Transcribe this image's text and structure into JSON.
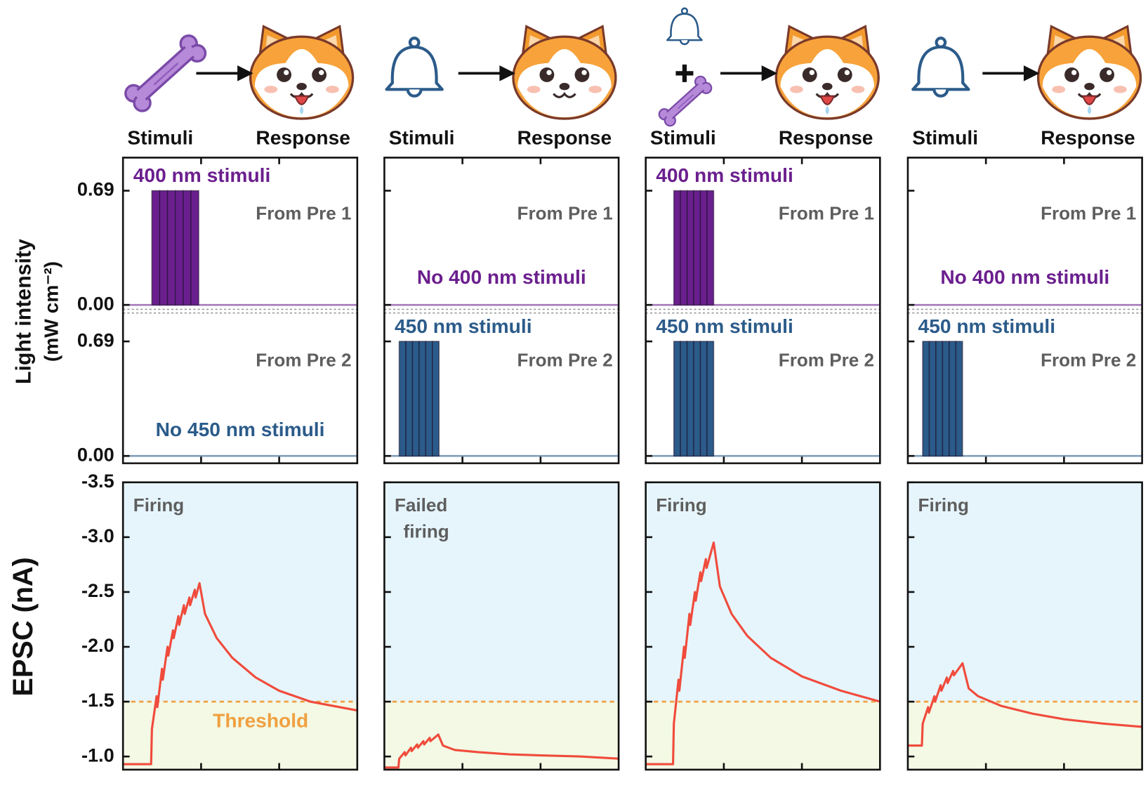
{
  "columns": [
    {
      "stimuli": "Stimuli",
      "response": "Response"
    },
    {
      "stimuli": "Stimuli",
      "response": "Response"
    },
    {
      "stimuli": "Stimuli",
      "response": "Response"
    },
    {
      "stimuli": "Stimuli",
      "response": "Response"
    }
  ],
  "ylabels": {
    "light": "Light intensity",
    "light_unit": "(mW cm⁻²)",
    "epsc": "EPSC (nA)"
  },
  "chart_data": [
    {
      "type": "pulse",
      "label": "400 nm stimuli",
      "source": "From Pre 1",
      "color": "#6b1f8e",
      "x": [
        3.7,
        4.7,
        5.7,
        6.7,
        7.7,
        8.7
      ],
      "pulse_width": 1.0,
      "values": [
        0.69,
        0.69,
        0.69,
        0.69,
        0.69,
        0.69
      ],
      "xlim": [
        0,
        30
      ],
      "xticks": [
        10,
        20
      ],
      "ylim": [
        -0.04,
        0.89
      ],
      "yticks": [
        {
          "value": 0,
          "label": "0.00"
        },
        0.69
      ]
    },
    {
      "type": "pulse",
      "label": "No 450 nm stimuli",
      "source": "From Pre 2",
      "color": "#2b5b8a",
      "x": [],
      "values": [],
      "xlim": [
        0,
        30
      ],
      "xticks": [
        10,
        20
      ],
      "ylim": [
        -0.044,
        0.87
      ],
      "yticks": [
        {
          "value": 0,
          "label": "0.00"
        },
        0.69
      ]
    },
    {
      "type": "line",
      "status": [
        "Firing"
      ],
      "threshold": -1.5,
      "threshold_label": "Threshold",
      "color": "#f04b3c",
      "x": [
        0,
        3.6,
        3.7,
        4.3,
        4.4,
        5.0,
        5.1,
        5.7,
        5.8,
        6.4,
        6.5,
        7.1,
        7.2,
        7.8,
        7.9,
        8.5,
        8.6,
        9.2,
        9.3,
        9.8,
        10.5,
        12,
        14,
        17,
        20,
        24,
        27,
        30
      ],
      "values": [
        -0.93,
        -0.93,
        -1.25,
        -1.55,
        -1.45,
        -1.8,
        -1.7,
        -2.0,
        -1.92,
        -2.15,
        -2.08,
        -2.28,
        -2.2,
        -2.38,
        -2.3,
        -2.45,
        -2.38,
        -2.52,
        -2.45,
        -2.58,
        -2.3,
        -2.08,
        -1.9,
        -1.72,
        -1.6,
        -1.5,
        -1.46,
        -1.42
      ],
      "xlim": [
        0,
        30
      ],
      "xticks": [
        10,
        20
      ],
      "ylim": [
        -0.88,
        -3.5
      ],
      "yticks": [
        -3.5,
        {
          "value": -3,
          "label": "-3.0"
        },
        -2.5,
        {
          "value": -2,
          "label": "-2.0"
        },
        -1.5,
        {
          "value": -1,
          "label": "-1.0"
        }
      ]
    },
    {
      "type": "pulse",
      "label": "No 400 nm stimuli",
      "source": "From Pre 1",
      "color": "#6b1f8e",
      "x": [],
      "values": [],
      "xlim": [
        0,
        30
      ],
      "xticks": [
        10,
        20
      ],
      "ylim": [
        -0.04,
        0.89
      ],
      "yticks": [
        0,
        0.69
      ],
      "tick_labels": false
    },
    {
      "type": "pulse",
      "label": "450 nm stimuli",
      "source": "From Pre 2",
      "color": "#2b5b8a",
      "x": [
        1.9,
        2.75,
        3.6,
        4.45,
        5.3,
        6.15
      ],
      "pulse_width": 0.85,
      "values": [
        0.69,
        0.69,
        0.69,
        0.69,
        0.69,
        0.69
      ],
      "xlim": [
        0,
        30
      ],
      "xticks": [
        10,
        20
      ],
      "ylim": [
        -0.044,
        0.87
      ],
      "yticks": [
        0,
        0.69
      ],
      "tick_labels": false
    },
    {
      "type": "line",
      "status": [
        "Failed",
        "firing"
      ],
      "threshold": -1.5,
      "color": "#f04b3c",
      "x": [
        0,
        1.8,
        1.9,
        2.6,
        2.7,
        3.4,
        3.5,
        4.2,
        4.3,
        5.0,
        5.1,
        5.8,
        5.9,
        6.9,
        7.5,
        9,
        12,
        16,
        20,
        25,
        30
      ],
      "values": [
        -0.9,
        -0.9,
        -0.98,
        -1.04,
        -1.01,
        -1.08,
        -1.05,
        -1.11,
        -1.08,
        -1.14,
        -1.11,
        -1.17,
        -1.14,
        -1.2,
        -1.1,
        -1.06,
        -1.04,
        -1.02,
        -1.01,
        -1.0,
        -0.98
      ],
      "xlim": [
        0,
        30
      ],
      "xticks": [
        10,
        20
      ],
      "ylim": [
        -0.88,
        -3.5
      ],
      "yticks": [
        -3.5,
        -3,
        -2.5,
        -2,
        -1.5,
        -1
      ],
      "tick_labels": false
    },
    {
      "type": "pulse",
      "label": "400 nm stimuli",
      "source": "From Pre 1",
      "color": "#6b1f8e",
      "x": [
        3.6,
        4.45,
        5.3,
        6.15,
        7.0,
        7.85
      ],
      "pulse_width": 0.85,
      "values": [
        0.69,
        0.69,
        0.69,
        0.69,
        0.69,
        0.69
      ],
      "xlim": [
        0,
        30
      ],
      "xticks": [
        10,
        20
      ],
      "ylim": [
        -0.04,
        0.89
      ],
      "yticks": [
        0,
        0.69
      ],
      "tick_labels": false
    },
    {
      "type": "pulse",
      "label": "450 nm stimuli",
      "source": "From Pre 2",
      "color": "#2b5b8a",
      "x": [
        3.6,
        4.45,
        5.3,
        6.15,
        7.0,
        7.85
      ],
      "pulse_width": 0.85,
      "values": [
        0.69,
        0.69,
        0.69,
        0.69,
        0.69,
        0.69
      ],
      "xlim": [
        0,
        30
      ],
      "xticks": [
        10,
        20
      ],
      "ylim": [
        -0.044,
        0.87
      ],
      "yticks": [
        0,
        0.69
      ],
      "tick_labels": false
    },
    {
      "type": "line",
      "status": [
        "Firing"
      ],
      "threshold": -1.5,
      "color": "#f04b3c",
      "x": [
        0,
        3.5,
        3.6,
        4.2,
        4.3,
        4.9,
        5.0,
        5.6,
        5.7,
        6.3,
        6.4,
        7.0,
        7.1,
        7.7,
        7.8,
        8.7,
        9.5,
        11,
        13,
        16,
        20,
        25,
        30
      ],
      "values": [
        -0.93,
        -0.93,
        -1.3,
        -1.7,
        -1.6,
        -2.0,
        -1.9,
        -2.3,
        -2.2,
        -2.5,
        -2.42,
        -2.68,
        -2.6,
        -2.8,
        -2.72,
        -2.95,
        -2.55,
        -2.3,
        -2.1,
        -1.9,
        -1.73,
        -1.6,
        -1.5
      ],
      "xlim": [
        0,
        30
      ],
      "xticks": [
        10,
        20
      ],
      "ylim": [
        -0.88,
        -3.5
      ],
      "yticks": [
        -3.5,
        -3,
        -2.5,
        -2,
        -1.5,
        -1
      ],
      "tick_labels": false
    },
    {
      "type": "pulse",
      "label": "No 400 nm stimuli",
      "source": "From Pre 1",
      "color": "#6b1f8e",
      "x": [],
      "values": [],
      "xlim": [
        0,
        30
      ],
      "xticks": [
        10,
        20
      ],
      "ylim": [
        -0.04,
        0.89
      ],
      "yticks": [
        0,
        0.69
      ],
      "tick_labels": false
    },
    {
      "type": "pulse",
      "label": "450 nm stimuli",
      "source": "From Pre 2",
      "color": "#2b5b8a",
      "x": [
        1.9,
        2.75,
        3.6,
        4.45,
        5.3,
        6.15
      ],
      "pulse_width": 0.85,
      "values": [
        0.69,
        0.69,
        0.69,
        0.69,
        0.69,
        0.69
      ],
      "xlim": [
        0,
        30
      ],
      "xticks": [
        10,
        20
      ],
      "ylim": [
        -0.044,
        0.87
      ],
      "yticks": [
        0,
        0.69
      ],
      "tick_labels": false
    },
    {
      "type": "line",
      "status": [
        "Firing"
      ],
      "threshold": -1.5,
      "color": "#f04b3c",
      "x": [
        0,
        1.8,
        1.9,
        2.6,
        2.7,
        3.4,
        3.5,
        4.2,
        4.3,
        5.0,
        5.1,
        5.8,
        5.9,
        7.0,
        7.8,
        9,
        12,
        16,
        20,
        25,
        30
      ],
      "values": [
        -1.1,
        -1.1,
        -1.3,
        -1.45,
        -1.4,
        -1.55,
        -1.5,
        -1.65,
        -1.6,
        -1.72,
        -1.67,
        -1.78,
        -1.74,
        -1.85,
        -1.62,
        -1.55,
        -1.46,
        -1.39,
        -1.34,
        -1.3,
        -1.27
      ],
      "xlim": [
        0,
        30
      ],
      "xticks": [
        10,
        20
      ],
      "ylim": [
        -0.88,
        -3.5
      ],
      "yticks": [
        -3.5,
        -3,
        -2.5,
        -2,
        -1.5,
        -1
      ],
      "tick_labels": false
    }
  ]
}
